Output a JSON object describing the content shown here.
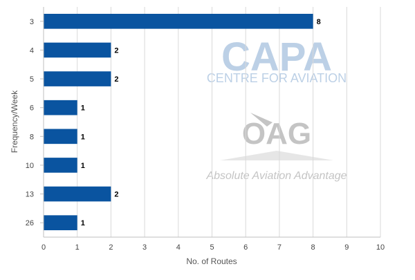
{
  "chart_data": {
    "type": "bar",
    "orientation": "horizontal",
    "categories": [
      "3",
      "4",
      "5",
      "6",
      "8",
      "10",
      "13",
      "26"
    ],
    "values": [
      8,
      2,
      2,
      1,
      1,
      1,
      2,
      1
    ],
    "xlabel": "No. of Routes",
    "ylabel": "Frequency/Week",
    "xlim": [
      0,
      10
    ],
    "xticks": [
      "0",
      "1",
      "2",
      "3",
      "4",
      "5",
      "6",
      "7",
      "8",
      "9",
      "10"
    ],
    "grid": "vertical",
    "bar_color": "#0a54a0",
    "data_labels": true
  },
  "watermarks": {
    "capa_logo": "CAPA",
    "capa_tagline": "CENTRE FOR AVIATION",
    "oag_logo": "OAG",
    "oag_tagline": "Absolute Aviation Advantage",
    "capa_color": "#bcd0e6",
    "oag_color": "#c4c4c4"
  }
}
